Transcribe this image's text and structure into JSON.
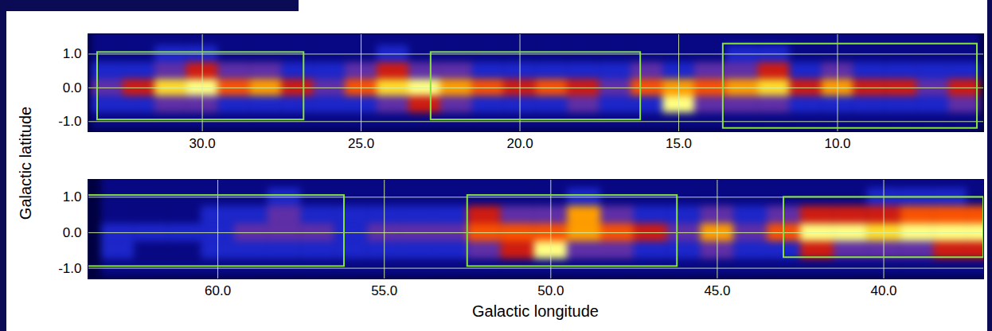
{
  "chart_data": {
    "type": "heatmap",
    "xlabel": "Galactic longitude",
    "ylabel": "Galactic latitude",
    "grid": true,
    "zlim": [
      0,
      9
    ],
    "panels": [
      {
        "xlim": [
          33.6,
          5.4
        ],
        "ylim": [
          -1.3,
          1.6
        ],
        "xticks": [
          {
            "value": 30,
            "label": "30.0"
          },
          {
            "value": 25,
            "label": "25.0"
          },
          {
            "value": 20,
            "label": "20.0"
          },
          {
            "value": 15,
            "label": "15.0"
          },
          {
            "value": 10,
            "label": "10.0"
          }
        ],
        "yticks": [
          {
            "value": 1,
            "label": "1.0"
          },
          {
            "value": 0,
            "label": "0.0"
          },
          {
            "value": -1,
            "label": "-1.0"
          }
        ],
        "lon_bins": [
          33.5,
          32.5,
          31.5,
          30.5,
          29.5,
          28.5,
          27.5,
          26.5,
          25.5,
          24.5,
          23.5,
          22.5,
          21.5,
          20.5,
          19.5,
          18.5,
          17.5,
          16.5,
          15.5,
          14.5,
          13.5,
          12.5,
          11.5,
          10.5,
          9.5,
          8.5,
          7.5,
          6.5,
          5.5
        ],
        "lat_bins": [
          1.75,
          1.25,
          0.75,
          0.25,
          -0.25,
          -0.75,
          -1.25
        ],
        "z": [
          [
            1,
            1,
            1,
            1,
            1,
            1,
            1,
            1,
            1,
            1,
            1,
            1,
            1,
            1,
            1,
            1,
            1,
            1,
            1,
            1,
            1,
            1,
            1,
            1,
            1,
            1,
            1,
            1
          ],
          [
            1,
            1,
            2,
            2,
            1,
            1,
            1,
            1,
            1,
            2,
            1,
            1,
            1,
            1,
            1,
            1,
            1,
            1,
            1,
            1,
            2,
            2,
            1,
            1,
            1,
            1,
            1,
            1
          ],
          [
            2,
            2,
            3,
            4,
            3,
            3,
            2,
            2,
            3,
            4,
            3,
            3,
            2,
            2,
            2,
            2,
            2,
            3,
            2,
            3,
            3,
            4,
            2,
            3,
            2,
            2,
            2,
            2
          ],
          [
            3,
            4,
            7,
            8,
            5,
            6,
            4,
            3,
            5,
            7,
            8,
            6,
            5,
            4,
            5,
            4,
            3,
            5,
            6,
            5,
            6,
            7,
            4,
            6,
            4,
            4,
            3,
            4
          ],
          [
            2,
            2,
            3,
            3,
            2,
            2,
            2,
            2,
            2,
            3,
            4,
            3,
            2,
            2,
            2,
            3,
            2,
            2,
            8,
            3,
            3,
            3,
            2,
            2,
            2,
            2,
            2,
            3
          ],
          [
            1,
            1,
            1,
            1,
            1,
            1,
            1,
            1,
            1,
            1,
            1,
            1,
            1,
            1,
            1,
            1,
            1,
            1,
            1,
            1,
            1,
            1,
            1,
            1,
            1,
            1,
            1,
            1
          ]
        ],
        "regions": [
          {
            "lon": [
              33.3,
              26.8
            ],
            "lat": [
              -0.95,
              1.05
            ]
          },
          {
            "lon": [
              22.8,
              16.2
            ],
            "lat": [
              -0.95,
              1.05
            ]
          },
          {
            "lon": [
              13.6,
              5.6
            ],
            "lat": [
              -1.2,
              1.3
            ]
          }
        ]
      },
      {
        "xlim": [
          63.9,
          37.0
        ],
        "ylim": [
          -1.3,
          1.5
        ],
        "xticks": [
          {
            "value": 60,
            "label": "60.0"
          },
          {
            "value": 55,
            "label": "55.0"
          },
          {
            "value": 50,
            "label": "50.0"
          },
          {
            "value": 45,
            "label": "45.0"
          },
          {
            "value": 40,
            "label": "40.0"
          }
        ],
        "yticks": [
          {
            "value": 1,
            "label": "1.0"
          },
          {
            "value": 0,
            "label": "0.0"
          },
          {
            "value": -1,
            "label": "-1.0"
          }
        ],
        "lon_bins": [
          63.5,
          62.5,
          61.5,
          60.5,
          59.5,
          58.5,
          57.5,
          56.5,
          55.5,
          54.5,
          53.5,
          52.5,
          51.5,
          50.5,
          49.5,
          48.5,
          47.5,
          46.5,
          45.5,
          44.5,
          43.5,
          42.5,
          41.5,
          40.5,
          39.5,
          38.5,
          37.5,
          36.5
        ],
        "lat_bins": [
          1.75,
          1.25,
          0.75,
          0.25,
          -0.25,
          -0.75,
          -1.25
        ],
        "z": [
          [
            1,
            1,
            1,
            1,
            1,
            1,
            1,
            1,
            1,
            1,
            1,
            1,
            1,
            1,
            1,
            1,
            1,
            1,
            1,
            1,
            1,
            1,
            1,
            1,
            1,
            1,
            1
          ],
          [
            1,
            1,
            1,
            1,
            1,
            2,
            1,
            1,
            1,
            1,
            1,
            1,
            1,
            1,
            2,
            1,
            1,
            1,
            1,
            1,
            1,
            1,
            1,
            2,
            2,
            2,
            1
          ],
          [
            1,
            1,
            1,
            2,
            2,
            3,
            2,
            2,
            2,
            2,
            2,
            4,
            3,
            3,
            6,
            3,
            2,
            2,
            3,
            2,
            3,
            4,
            4,
            4,
            5,
            5,
            5
          ],
          [
            2,
            2,
            2,
            2,
            3,
            3,
            3,
            2,
            3,
            3,
            3,
            5,
            5,
            5,
            6,
            5,
            4,
            3,
            6,
            3,
            5,
            8,
            8,
            7,
            8,
            8,
            8
          ],
          [
            2,
            1,
            1,
            2,
            2,
            2,
            2,
            2,
            2,
            2,
            2,
            3,
            4,
            8,
            3,
            3,
            2,
            2,
            3,
            2,
            2,
            4,
            3,
            3,
            3,
            4,
            4
          ],
          [
            1,
            1,
            1,
            1,
            1,
            1,
            1,
            1,
            1,
            1,
            1,
            1,
            1,
            1,
            1,
            1,
            1,
            1,
            1,
            1,
            1,
            1,
            1,
            1,
            1,
            1,
            1
          ]
        ],
        "regions": [
          {
            "lon": [
              63.9,
              56.2
            ],
            "lat": [
              -0.95,
              1.05
            ]
          },
          {
            "lon": [
              52.5,
              46.2
            ],
            "lat": [
              -0.95,
              1.05
            ]
          },
          {
            "lon": [
              43.0,
              37.0
            ],
            "lat": [
              -0.7,
              1.0
            ]
          }
        ]
      }
    ]
  }
}
